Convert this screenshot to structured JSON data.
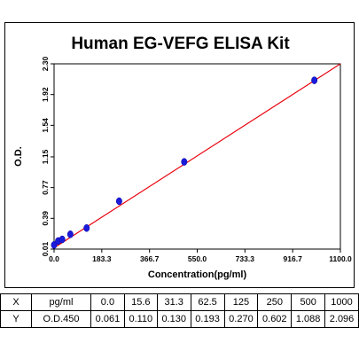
{
  "chart_data": {
    "type": "scatter",
    "title": "Human EG-VEFG ELISA Kit",
    "xlabel": "Concentration(pg/ml)",
    "ylabel": "O.D.",
    "xlim": [
      0.0,
      1100.0
    ],
    "ylim": [
      0.01,
      2.3
    ],
    "x_ticks": [
      "0.0",
      "183.3",
      "366.7",
      "550.0",
      "733.3",
      "916.7",
      "1100.0"
    ],
    "y_ticks": [
      "0.01",
      "0.39",
      "0.77",
      "1.15",
      "1.54",
      "1.92",
      "2.30"
    ],
    "series": [
      {
        "x": [
          0.0,
          15.6,
          31.3,
          62.5,
          125,
          250,
          500,
          1000
        ],
        "y": [
          0.061,
          0.11,
          0.13,
          0.193,
          0.27,
          0.602,
          1.088,
          2.096
        ],
        "color": "#1a1adb"
      }
    ],
    "fit_line": {
      "x": [
        0.0,
        1100.0
      ],
      "y": [
        0.025,
        2.3
      ],
      "color": "#e8000b"
    },
    "grid": false
  },
  "table": {
    "rows": [
      {
        "label": "X",
        "unit": "pg/ml",
        "values": [
          "0.0",
          "15.6",
          "31.3",
          "62.5",
          "125",
          "250",
          "500",
          "1000"
        ]
      },
      {
        "label": "Y",
        "unit": "O.D.450",
        "values": [
          "0.061",
          "0.110",
          "0.130",
          "0.193",
          "0.270",
          "0.602",
          "1.088",
          "2.096"
        ]
      }
    ]
  }
}
